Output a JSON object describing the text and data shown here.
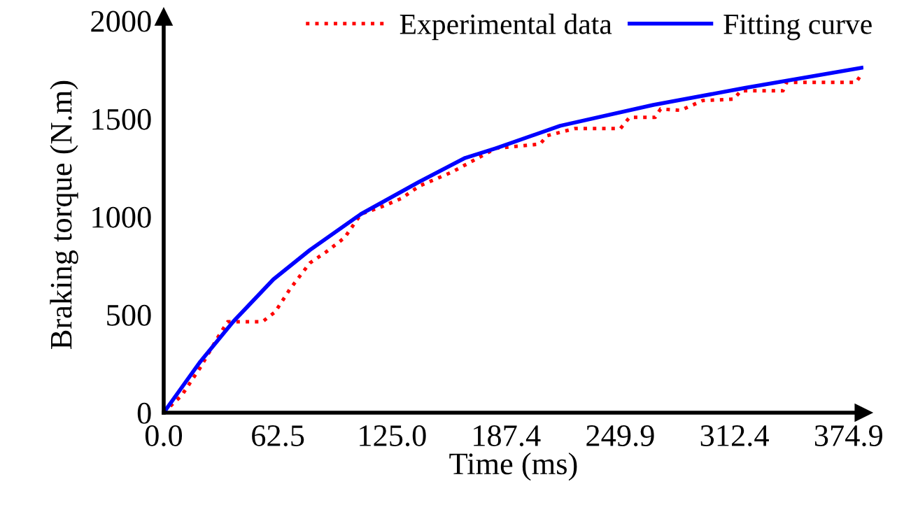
{
  "chart_data": {
    "type": "line",
    "xlabel": "Time (ms)",
    "ylabel": "Braking torque (N.m)",
    "xlim": [
      0,
      383
    ],
    "ylim": [
      0,
      2020
    ],
    "xticks": [
      {
        "value": 0,
        "label": "0.0"
      },
      {
        "value": 62.5,
        "label": "62.5"
      },
      {
        "value": 125.0,
        "label": "125.0"
      },
      {
        "value": 187.4,
        "label": "187.4"
      },
      {
        "value": 249.9,
        "label": "249.9"
      },
      {
        "value": 312.4,
        "label": "312.4"
      },
      {
        "value": 374.9,
        "label": "374.9"
      }
    ],
    "yticks": [
      0,
      500,
      1000,
      1500,
      2000
    ],
    "grid": false,
    "legend": "top right",
    "series": [
      {
        "name": "Experimental data",
        "color": "#ff0000",
        "line_style": "dotted",
        "x": [
          0,
          10,
          20,
          30,
          35,
          54,
          61,
          69,
          80,
          89,
          99,
          108,
          119,
          130,
          140,
          158,
          182,
          206,
          210,
          225,
          250,
          255,
          269,
          272,
          283,
          295,
          312,
          316,
          339,
          341,
          379,
          381
        ],
        "values": [
          0,
          90,
          230,
          390,
          464,
          464,
          514,
          629,
          764,
          821,
          893,
          1014,
          1050,
          1093,
          1157,
          1229,
          1350,
          1371,
          1414,
          1450,
          1450,
          1507,
          1507,
          1550,
          1543,
          1593,
          1600,
          1643,
          1643,
          1686,
          1686,
          1714
        ]
      },
      {
        "name": "Fitting curve",
        "color": "#0000ff",
        "line_style": "solid",
        "x": [
          0,
          20,
          38,
          60,
          80,
          108,
          140,
          165,
          182,
          217,
          268,
          318,
          382
        ],
        "values": [
          0,
          260,
          464,
          680,
          830,
          1014,
          1179,
          1300,
          1350,
          1464,
          1571,
          1657,
          1760
        ]
      }
    ]
  }
}
